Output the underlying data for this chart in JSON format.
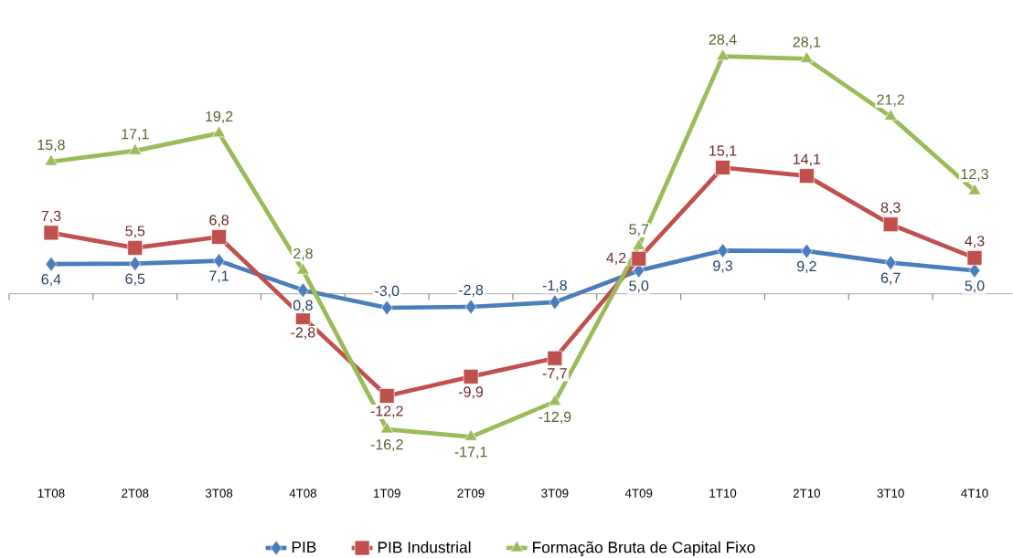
{
  "chart_data": {
    "type": "line",
    "categories": [
      "1T08",
      "2T08",
      "3T08",
      "4T08",
      "1T09",
      "2T09",
      "3T09",
      "4T09",
      "1T10",
      "2T10",
      "3T10",
      "4T10"
    ],
    "series": [
      {
        "name": "PIB",
        "color": "#4a7ebb",
        "marker": "diamond",
        "axis": "y2",
        "values": [
          6.4,
          6.5,
          7.1,
          0.8,
          -3.0,
          -2.8,
          -1.8,
          5.0,
          9.3,
          9.2,
          6.7,
          5.0
        ],
        "value_labels": [
          "6,4",
          "6,5",
          "7,1",
          "0,8",
          "-3,0",
          "-2,8",
          "-1,8",
          "5,0",
          "9,3",
          "9,2",
          "6,7",
          "5,0"
        ]
      },
      {
        "name": "PIB Industrial",
        "color": "#c0504d",
        "marker": "square",
        "values": [
          7.3,
          5.5,
          6.8,
          -2.8,
          -12.2,
          -9.9,
          -7.7,
          4.2,
          15.1,
          14.1,
          8.3,
          4.3
        ],
        "value_labels": [
          "7,3",
          "5,5",
          "6,8",
          "-2,8",
          "-12,2",
          "-9,9",
          "-7,7",
          "4,2",
          "15,1",
          "14,1",
          "8,3",
          "4,3"
        ]
      },
      {
        "name": "Formação Bruta de Capital Fixo",
        "color": "#9bbb59",
        "marker": "triangle",
        "values": [
          15.8,
          17.1,
          19.2,
          2.8,
          -16.2,
          -17.1,
          -12.9,
          5.7,
          28.4,
          28.1,
          21.2,
          12.3
        ],
        "value_labels": [
          "15,8",
          "17,1",
          "19,2",
          "2,8",
          "-16,2",
          "-17,1",
          "-12,9",
          "5,7",
          "28,4",
          "28,1",
          "21,2",
          "12,3"
        ]
      }
    ],
    "tick_labels": "x",
    "grid": false,
    "legend": "bottom"
  }
}
